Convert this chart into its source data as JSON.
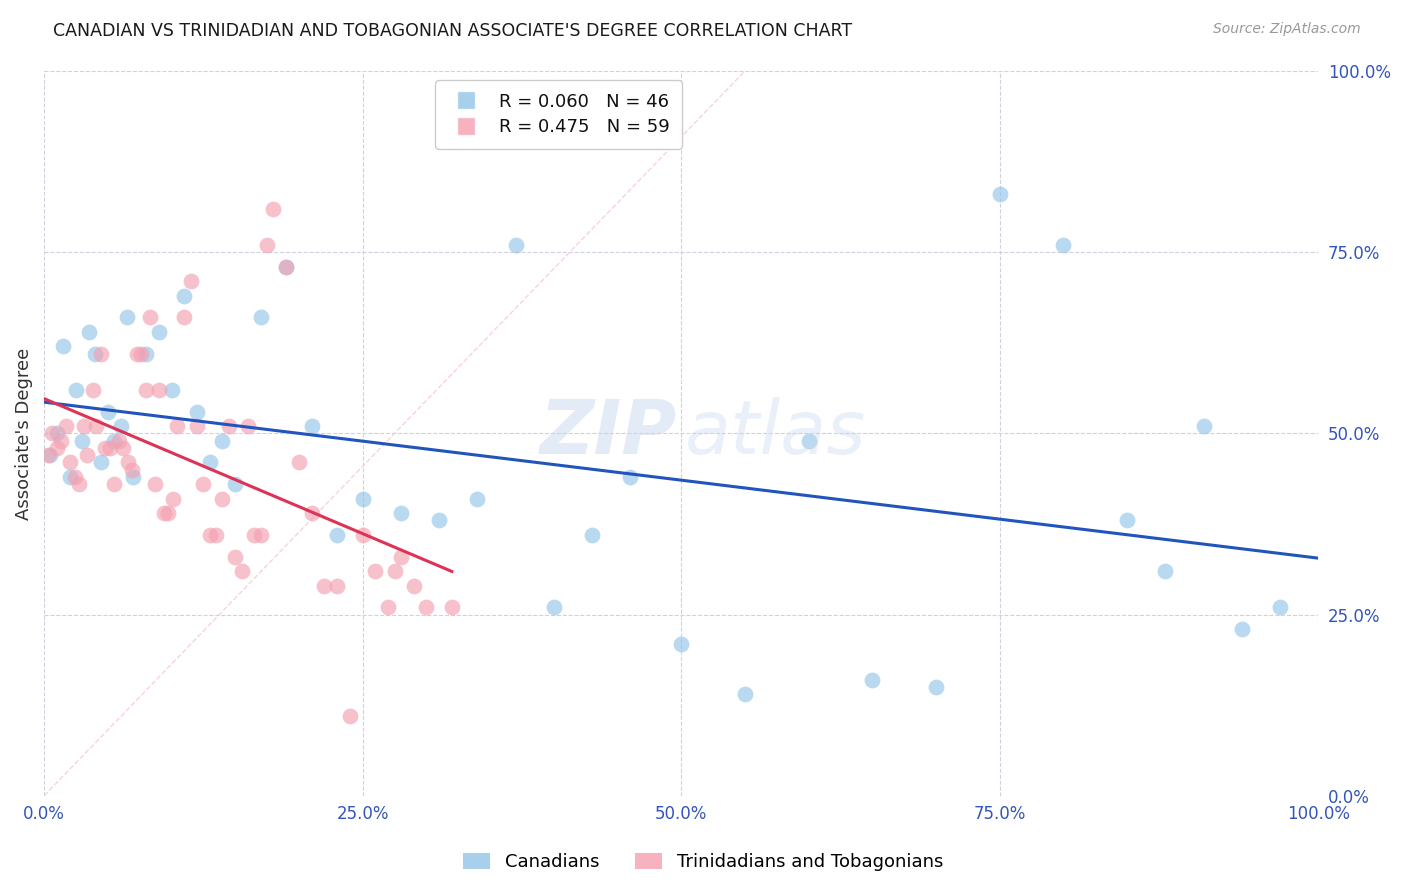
{
  "title": "CANADIAN VS TRINIDADIAN AND TOBAGONIAN ASSOCIATE'S DEGREE CORRELATION CHART",
  "source": "Source: ZipAtlas.com",
  "ylabel": "Associate's Degree",
  "watermark_zip": "ZIP",
  "watermark_atlas": "atlas",
  "canadian_color": "#92C5E8",
  "trini_color": "#F4A0B0",
  "line_canadian_color": "#2255BB",
  "line_trini_color": "#DD3355",
  "diag_color": "#F8C8D0",
  "R_canadian": 0.06,
  "N_canadian": 46,
  "R_trini": 0.475,
  "N_trini": 59,
  "xlim": [
    0,
    100
  ],
  "ylim": [
    0,
    100
  ],
  "tick_pcts": [
    0,
    25,
    50,
    75,
    100
  ],
  "canadians_x": [
    0.5,
    1.0,
    1.5,
    2.0,
    2.5,
    3.0,
    3.5,
    4.0,
    4.5,
    5.0,
    5.5,
    6.0,
    6.5,
    7.0,
    8.0,
    9.0,
    10.0,
    11.0,
    12.0,
    13.0,
    14.0,
    15.0,
    17.0,
    19.0,
    21.0,
    23.0,
    25.0,
    28.0,
    31.0,
    34.0,
    37.0,
    40.0,
    43.0,
    46.0,
    50.0,
    55.0,
    60.0,
    65.0,
    70.0,
    75.0,
    80.0,
    85.0,
    88.0,
    91.0,
    94.0,
    97.0
  ],
  "canadians_y": [
    47.0,
    50.0,
    62.0,
    44.0,
    56.0,
    49.0,
    64.0,
    61.0,
    46.0,
    53.0,
    49.0,
    51.0,
    66.0,
    44.0,
    61.0,
    64.0,
    56.0,
    69.0,
    53.0,
    46.0,
    49.0,
    43.0,
    66.0,
    73.0,
    51.0,
    36.0,
    41.0,
    39.0,
    38.0,
    41.0,
    76.0,
    26.0,
    36.0,
    44.0,
    21.0,
    14.0,
    49.0,
    16.0,
    15.0,
    83.0,
    76.0,
    38.0,
    31.0,
    51.0,
    23.0,
    26.0
  ],
  "trini_x": [
    0.3,
    0.6,
    1.0,
    1.3,
    1.7,
    2.0,
    2.4,
    2.7,
    3.1,
    3.4,
    3.8,
    4.1,
    4.5,
    4.8,
    5.2,
    5.5,
    5.9,
    6.2,
    6.6,
    6.9,
    7.3,
    7.6,
    8.0,
    8.3,
    8.7,
    9.0,
    9.4,
    9.7,
    10.1,
    10.4,
    11.0,
    11.5,
    12.0,
    12.5,
    13.0,
    13.5,
    14.0,
    14.5,
    15.0,
    15.5,
    16.0,
    16.5,
    17.0,
    17.5,
    18.0,
    19.0,
    20.0,
    21.0,
    22.0,
    23.0,
    24.0,
    25.0,
    26.0,
    27.0,
    27.5,
    28.0,
    29.0,
    30.0,
    32.0
  ],
  "trini_y": [
    47.0,
    50.0,
    48.0,
    49.0,
    51.0,
    46.0,
    44.0,
    43.0,
    51.0,
    47.0,
    56.0,
    51.0,
    61.0,
    48.0,
    48.0,
    43.0,
    49.0,
    48.0,
    46.0,
    45.0,
    61.0,
    61.0,
    56.0,
    66.0,
    43.0,
    56.0,
    39.0,
    39.0,
    41.0,
    51.0,
    66.0,
    71.0,
    51.0,
    43.0,
    36.0,
    36.0,
    41.0,
    51.0,
    33.0,
    31.0,
    51.0,
    36.0,
    36.0,
    76.0,
    81.0,
    73.0,
    46.0,
    39.0,
    29.0,
    29.0,
    11.0,
    36.0,
    31.0,
    26.0,
    31.0,
    33.0,
    29.0,
    26.0,
    26.0
  ]
}
